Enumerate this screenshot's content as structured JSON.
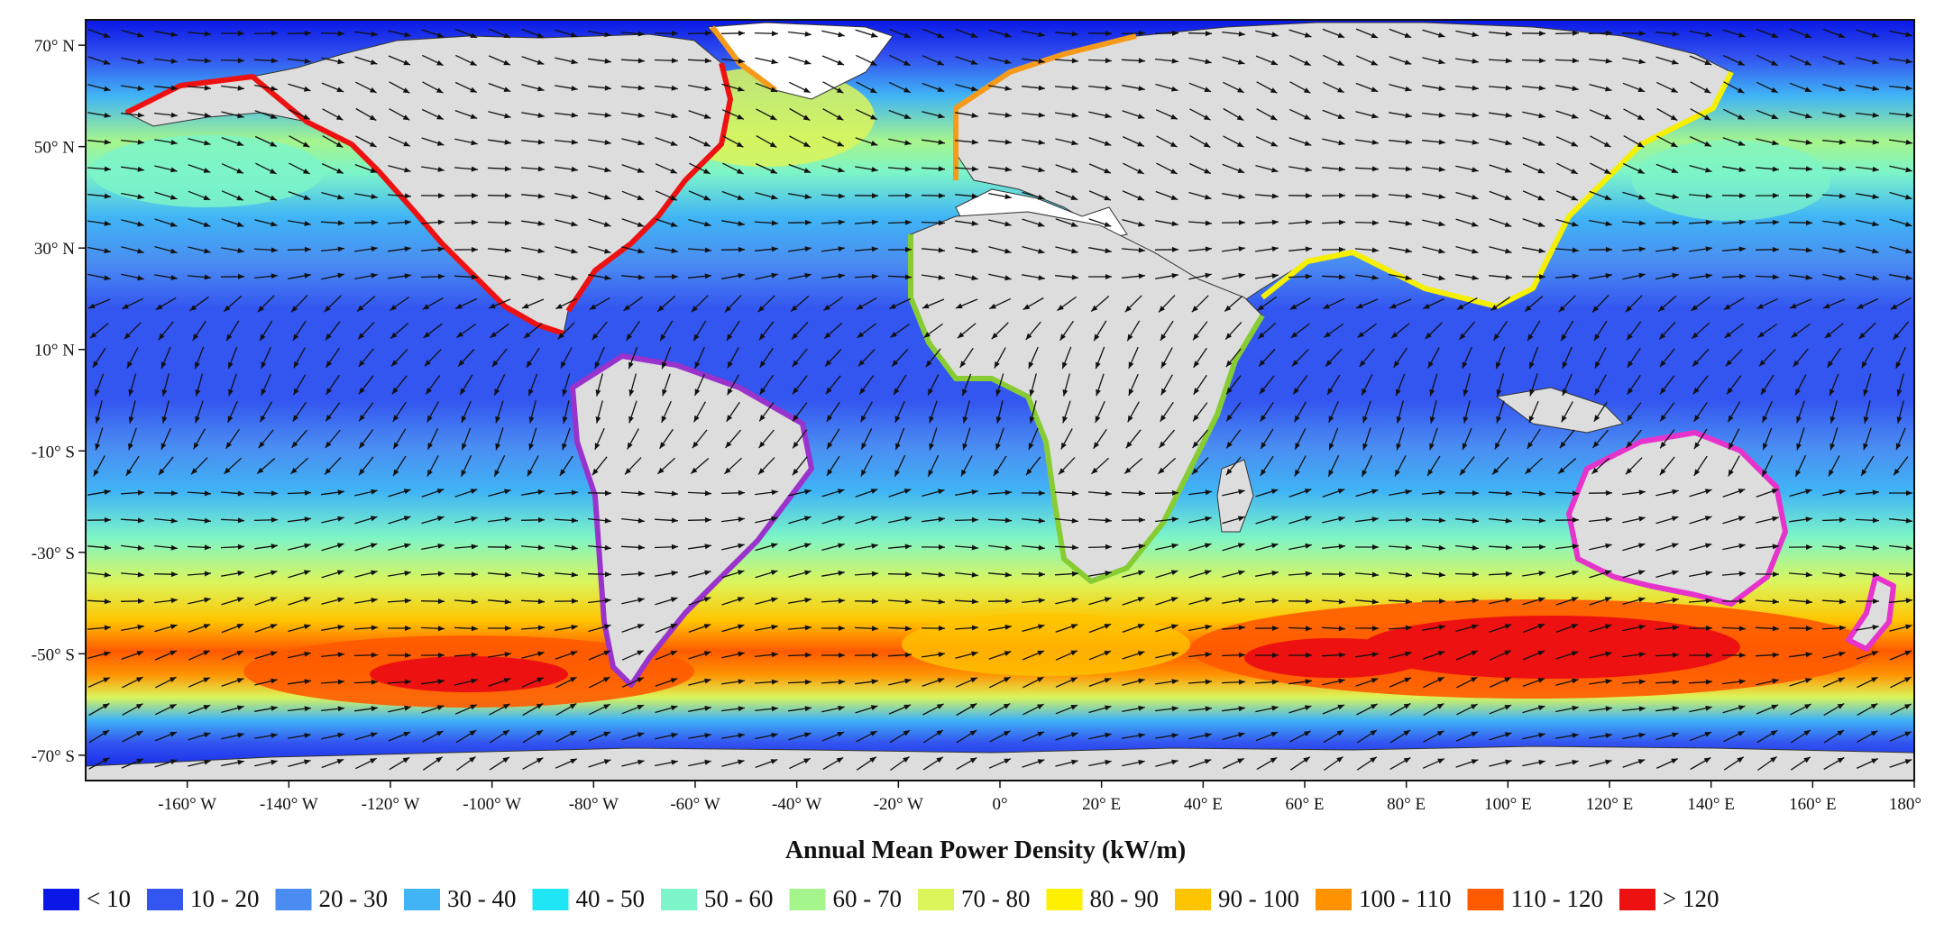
{
  "map": {
    "title": "Annual Mean Power Density (kW/m)",
    "lon_ticks": [
      "-160° W",
      "-140° W",
      "-120° W",
      "-100° W",
      "-80° W",
      "-60° W",
      "-40° W",
      "-20° W",
      "0°",
      "20° E",
      "40° E",
      "60° E",
      "80° E",
      "100° E",
      "120° E",
      "140° E",
      "160° E",
      "180°"
    ],
    "lat_ticks": [
      "70° N",
      "50° N",
      "30° N",
      "10° N",
      "-10° S",
      "-30° S",
      "-50° S",
      "-70° S"
    ],
    "lon_values": [
      -160,
      -140,
      -120,
      -100,
      -80,
      -60,
      -40,
      -20,
      0,
      20,
      40,
      60,
      80,
      100,
      120,
      140,
      160,
      180
    ],
    "lat_values": [
      70,
      50,
      30,
      10,
      -10,
      -30,
      -50,
      -70
    ],
    "lon_range": [
      -180,
      180
    ],
    "lat_range": [
      -75,
      75
    ],
    "land_color": "#dddddd",
    "coastal_regions": [
      {
        "region": "North America Pacific & Atlantic coasts",
        "color": "#ee1111"
      },
      {
        "region": "South America",
        "color": "#9933cc"
      },
      {
        "region": "Europe",
        "color": "#f59a1a"
      },
      {
        "region": "Africa",
        "color": "#88cc33"
      },
      {
        "region": "Asia",
        "color": "#f5f000"
      },
      {
        "region": "Oceania",
        "color": "#e633cc"
      }
    ]
  },
  "legend": [
    {
      "label": "< 10",
      "color": "#0a17e6"
    },
    {
      "label": "10 - 20",
      "color": "#3355f0"
    },
    {
      "label": "20 - 30",
      "color": "#4a8cf2"
    },
    {
      "label": "30 - 40",
      "color": "#40b4f5"
    },
    {
      "label": "40 - 50",
      "color": "#1fe6f5"
    },
    {
      "label": "50 - 60",
      "color": "#7df5c8"
    },
    {
      "label": "60 - 70",
      "color": "#a6f58c"
    },
    {
      "label": "70 - 80",
      "color": "#dcf55a"
    },
    {
      "label": "80 - 90",
      "color": "#fff000"
    },
    {
      "label": "90 - 100",
      "color": "#ffc400"
    },
    {
      "label": "100 - 110",
      "color": "#ff9200"
    },
    {
      "label": "110 - 120",
      "color": "#ff5a00"
    },
    {
      "label": "> 120",
      "color": "#ee1111"
    }
  ]
}
